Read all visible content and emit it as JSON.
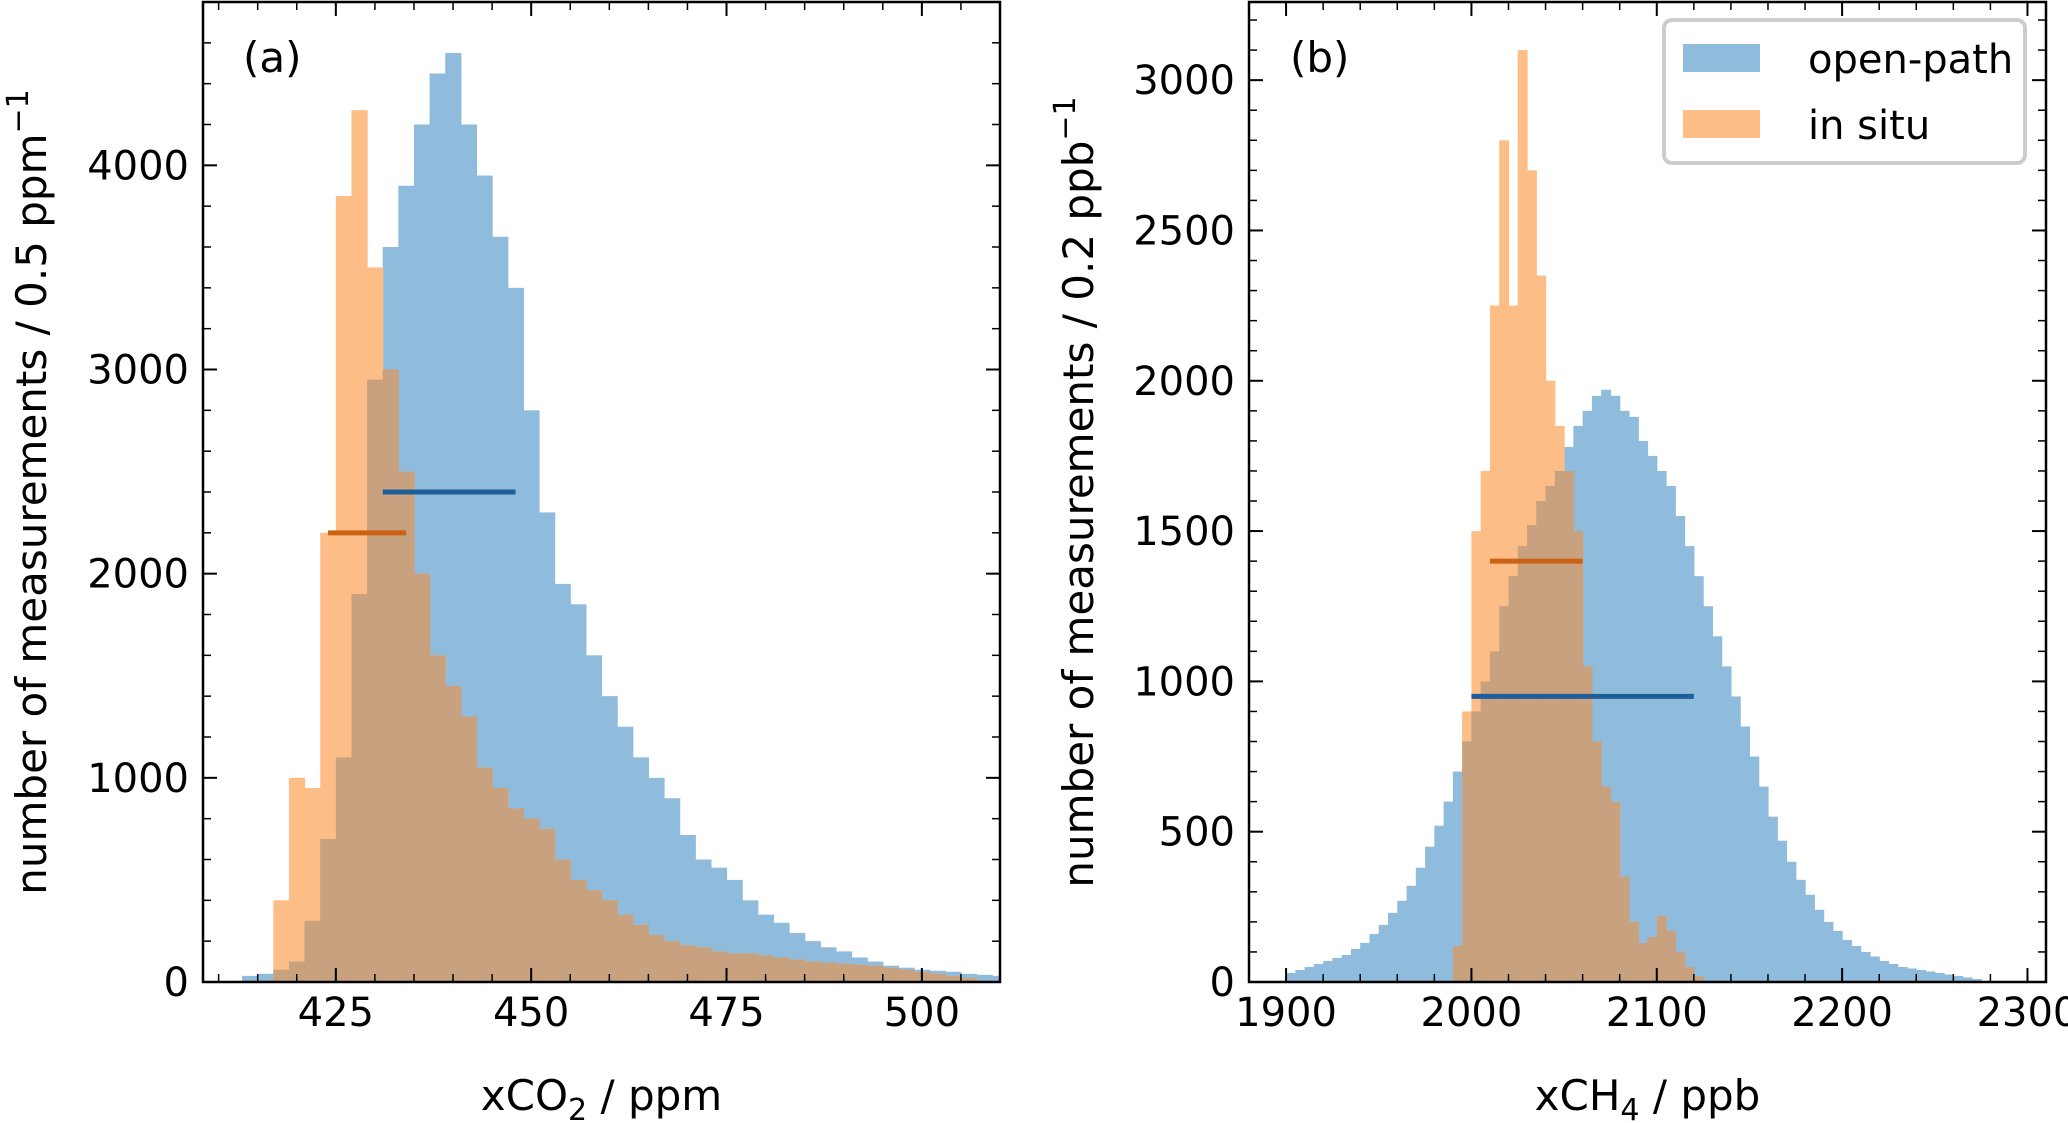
{
  "legend": {
    "placement": "top-right of panel (b)",
    "entries": [
      "open-path",
      "in situ"
    ]
  },
  "colors": {
    "open_path_fill": "#8fbbdc",
    "in_situ_fill": "#fdbd86",
    "overlap_fill": "#c8a17e",
    "open_path_line": "#1f5f99",
    "in_situ_line": "#cc6214"
  },
  "chart_data": [
    {
      "type": "bar",
      "panel_label": "(a)",
      "xlabel_main": "xCO",
      "xlabel_sub": "2",
      "xlabel_unit": " / ppm",
      "ylabel_main": "number of measurements / 0.5 ppm",
      "ylabel_sup": "−1",
      "xlim": [
        408,
        510
      ],
      "ylim": [
        0,
        4800
      ],
      "xticks": [
        425,
        450,
        475,
        500
      ],
      "yticks": [
        0,
        1000,
        2000,
        3000,
        4000
      ],
      "bin_width": 2,
      "series": [
        {
          "name": "open-path",
          "x_start": 413,
          "values": [
            30,
            40,
            60,
            100,
            300,
            700,
            1100,
            1900,
            2950,
            3600,
            3900,
            4200,
            4450,
            4550,
            4200,
            3950,
            3650,
            3400,
            2800,
            2300,
            1950,
            1850,
            1600,
            1400,
            1250,
            1100,
            1000,
            900,
            720,
            600,
            560,
            500,
            400,
            330,
            290,
            240,
            200,
            170,
            150,
            120,
            100,
            80,
            70,
            60,
            55,
            50,
            40,
            35,
            30
          ],
          "bar_mark": {
            "y": 2400,
            "x_range": [
              431,
              448
            ]
          }
        },
        {
          "name": "in situ",
          "x_start": 417,
          "values": [
            400,
            1000,
            950,
            2200,
            3850,
            4270,
            3500,
            3000,
            2500,
            2000,
            1600,
            1450,
            1300,
            1050,
            950,
            850,
            800,
            750,
            600,
            500,
            450,
            400,
            330,
            280,
            230,
            200,
            180,
            170,
            150,
            140,
            140,
            130,
            120,
            110,
            100,
            95,
            90,
            85,
            80,
            70,
            60,
            50,
            40,
            30,
            20
          ],
          "bar_mark": {
            "y": 2200,
            "x_range": [
              424,
              434
            ]
          }
        }
      ]
    },
    {
      "type": "bar",
      "panel_label": "(b)",
      "xlabel_main": "xCH",
      "xlabel_sub": "4",
      "xlabel_unit": " / ppb",
      "ylabel_main": "number of measurements / 0.2 ppb",
      "ylabel_sup": "−1",
      "xlim": [
        1880,
        2310
      ],
      "ylim": [
        0,
        3260
      ],
      "xticks": [
        1900,
        2000,
        2100,
        2200,
        2300
      ],
      "yticks": [
        0,
        500,
        1000,
        1500,
        2000,
        2500,
        3000
      ],
      "bin_width": 5,
      "series": [
        {
          "name": "open-path",
          "x_start": 1900,
          "values": [
            30,
            40,
            50,
            60,
            70,
            80,
            90,
            110,
            130,
            160,
            190,
            230,
            270,
            320,
            380,
            450,
            520,
            600,
            700,
            800,
            900,
            1000,
            1100,
            1250,
            1350,
            1450,
            1520,
            1600,
            1650,
            1700,
            1780,
            1850,
            1900,
            1950,
            1970,
            1950,
            1900,
            1880,
            1800,
            1750,
            1700,
            1650,
            1550,
            1450,
            1350,
            1250,
            1150,
            1050,
            950,
            850,
            750,
            650,
            550,
            470,
            400,
            340,
            290,
            240,
            200,
            170,
            140,
            120,
            100,
            85,
            70,
            60,
            50,
            45,
            40,
            35,
            30,
            25,
            20,
            15,
            10
          ],
          "bar_mark": {
            "y": 950,
            "x_range": [
              2000,
              2120
            ]
          }
        },
        {
          "name": "in situ",
          "x_start": 1990,
          "values": [
            120,
            900,
            1500,
            1700,
            2250,
            2800,
            2250,
            3100,
            2700,
            2350,
            2000,
            1850,
            1700,
            1500,
            1050,
            800,
            650,
            600,
            350,
            200,
            130,
            150,
            220,
            170,
            100,
            50,
            20
          ],
          "bar_mark": {
            "y": 1400,
            "x_range": [
              2010,
              2060
            ]
          }
        }
      ]
    }
  ]
}
